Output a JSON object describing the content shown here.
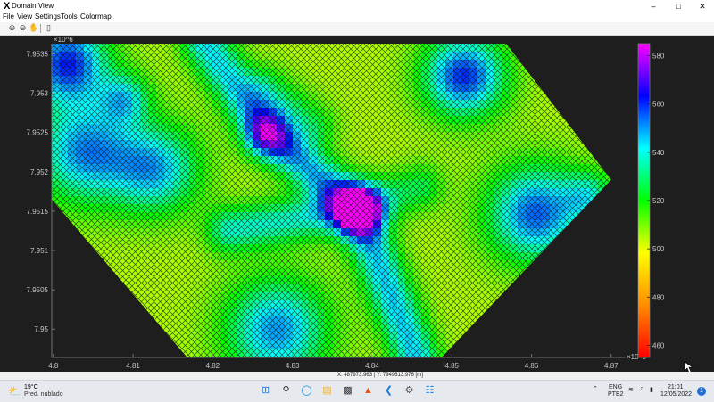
{
  "window": {
    "title": "Domain View",
    "app_icon": "X",
    "controls": [
      "minimize-icon",
      "maximize-icon",
      "close-icon"
    ]
  },
  "menu": [
    "File",
    "View",
    "Settings",
    "Tools",
    "Colormap"
  ],
  "toolbar": {
    "icons": [
      "zoom-in-icon",
      "zoom-out-icon",
      "pan-hand-icon",
      "colorbar-toggle-icon"
    ]
  },
  "colormap": {
    "stops": [
      "#ff0000",
      "#ff8c00",
      "#ffff00",
      "#00ff00",
      "#00ffff",
      "#0000ff",
      "#ff00ff"
    ],
    "grid_line_color": "#151515",
    "background": "#1e1e1e"
  },
  "chart_data": {
    "type": "heatmap",
    "x_exponent_label": "×10^5",
    "y_exponent_label": "×10^6",
    "x_ticks": [
      "4.8",
      "4.81",
      "4.82",
      "4.83",
      "4.84",
      "4.85",
      "4.86",
      "4.87"
    ],
    "y_ticks": [
      "7.9535",
      "7.953",
      "7.9525",
      "7.952",
      "7.9515",
      "7.951",
      "7.9505",
      "7.95"
    ],
    "xlim": [
      4.7998,
      4.8717
    ],
    "ylim": [
      7.94964,
      7.95363
    ],
    "colorbar_ticks": [
      "580",
      "560",
      "540",
      "520",
      "500",
      "480",
      "460"
    ],
    "colorbar_range": [
      455,
      585
    ],
    "domain_polygon": [
      [
        4.7998,
        7.95363
      ],
      [
        4.8568,
        7.95363
      ],
      [
        4.87,
        7.9519
      ],
      [
        4.8487,
        7.94964
      ],
      [
        4.8168,
        7.94964
      ],
      [
        4.7998,
        7.95165
      ]
    ],
    "grid_rotation_deg": 45,
    "features": {
      "high_ridge": "red band running from the top-center (~4.822, 7.9535) down through (~4.842, 7.9518) toward the bottom (~4.846, 7.9496), with a branch westward to (~4.824, 7.9516)",
      "lows": "blue/magenta pockets near the top-left (~4.801, 7.9533), left (~4.805, 7.9523), top-right (~4.852, 7.9533), right (~4.866, 7.9516) and bottom (~4.832, 7.9498)"
    }
  },
  "status": {
    "coords": "X: 487973.963 | Y: 7949613.976 [m]"
  },
  "taskbar": {
    "weather_temp": "19°C",
    "weather_desc": "Pred. nublado",
    "apps": [
      "windows-start-icon",
      "search-icon",
      "edge-browser-icon",
      "file-explorer-icon",
      "terminal-icon",
      "matlab-icon",
      "vscode-icon",
      "settings-app-icon",
      "notepad-icon"
    ],
    "lang_top": "ENG",
    "lang_bottom": "PTB2",
    "time": "21:01",
    "date": "12/05/2022",
    "notifications": "1"
  }
}
